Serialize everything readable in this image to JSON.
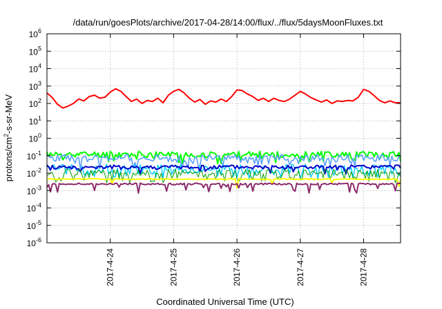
{
  "chart_data": {
    "type": "line",
    "title": "/data/run/goesPlots/archive/2017-04-28/14:00/flux/../flux/5daysMoonFluxes.txt",
    "xlabel": "Coordinated Universal Time (UTC)",
    "ylabel": {
      "base": "protons/cm",
      "sup": "2",
      "rest": "-s-sr-MeV"
    },
    "y_scale": "log",
    "ylim": [
      1e-06,
      1000000.0
    ],
    "xlim": [
      "2017-04-23 00:00",
      "2017-04-28 14:00"
    ],
    "x_ticks": [
      {
        "date": "2017-04-24",
        "label": "2017-4-24"
      },
      {
        "date": "2017-04-25",
        "label": "2017-4-25"
      },
      {
        "date": "2017-04-26",
        "label": "2017-4-26"
      },
      {
        "date": "2017-04-27",
        "label": "2017-4-27"
      },
      {
        "date": "2017-04-28",
        "label": "2017-4-28"
      }
    ],
    "y_ticks": [
      {
        "exp": -6,
        "base": "10",
        "sup": "-6"
      },
      {
        "exp": -5,
        "base": "10",
        "sup": "-5"
      },
      {
        "exp": -4,
        "base": "10",
        "sup": "-4"
      },
      {
        "exp": -3,
        "base": "10",
        "sup": "-3"
      },
      {
        "exp": -2,
        "base": "10",
        "sup": "-2"
      },
      {
        "exp": -1,
        "base": "10",
        "sup": "-1"
      },
      {
        "exp": 0,
        "base": "10",
        "sup": "0"
      },
      {
        "exp": 1,
        "base": "10",
        "sup": "1"
      },
      {
        "exp": 2,
        "base": "10",
        "sup": "2"
      },
      {
        "exp": 3,
        "base": "10",
        "sup": "3"
      },
      {
        "exp": 4,
        "base": "10",
        "sup": "4"
      },
      {
        "exp": 5,
        "base": "10",
        "sup": "5"
      },
      {
        "exp": 6,
        "base": "10",
        "sup": "6"
      }
    ],
    "grid": true,
    "series": [
      {
        "color": "#ff0000",
        "width": 2.0,
        "points": [
          [
            "2017-04-23 00:00",
            400
          ],
          [
            "2017-04-23 02:00",
            220
          ],
          [
            "2017-04-23 04:00",
            90
          ],
          [
            "2017-04-23 06:00",
            55
          ],
          [
            "2017-04-23 08:00",
            70
          ],
          [
            "2017-04-23 10:00",
            100
          ],
          [
            "2017-04-23 12:00",
            180
          ],
          [
            "2017-04-23 14:00",
            140
          ],
          [
            "2017-04-23 16:00",
            250
          ],
          [
            "2017-04-23 18:00",
            300
          ],
          [
            "2017-04-23 20:00",
            200
          ],
          [
            "2017-04-23 22:00",
            230
          ],
          [
            "2017-04-24 00:00",
            450
          ],
          [
            "2017-04-24 02:00",
            700
          ],
          [
            "2017-04-24 04:00",
            500
          ],
          [
            "2017-04-24 06:00",
            250
          ],
          [
            "2017-04-24 08:00",
            130
          ],
          [
            "2017-04-24 10:00",
            180
          ],
          [
            "2017-04-24 12:00",
            100
          ],
          [
            "2017-04-24 14:00",
            150
          ],
          [
            "2017-04-24 16:00",
            130
          ],
          [
            "2017-04-24 18:00",
            200
          ],
          [
            "2017-04-24 20:00",
            110
          ],
          [
            "2017-04-24 22:00",
            300
          ],
          [
            "2017-04-25 00:00",
            500
          ],
          [
            "2017-04-25 02:00",
            650
          ],
          [
            "2017-04-25 04:00",
            400
          ],
          [
            "2017-04-25 06:00",
            200
          ],
          [
            "2017-04-25 08:00",
            120
          ],
          [
            "2017-04-25 10:00",
            170
          ],
          [
            "2017-04-25 12:00",
            90
          ],
          [
            "2017-04-25 14:00",
            140
          ],
          [
            "2017-04-25 16:00",
            120
          ],
          [
            "2017-04-25 18:00",
            180
          ],
          [
            "2017-04-25 20:00",
            130
          ],
          [
            "2017-04-25 22:00",
            250
          ],
          [
            "2017-04-26 00:00",
            600
          ],
          [
            "2017-04-26 02:00",
            550
          ],
          [
            "2017-04-26 04:00",
            350
          ],
          [
            "2017-04-26 06:00",
            250
          ],
          [
            "2017-04-26 08:00",
            150
          ],
          [
            "2017-04-26 10:00",
            200
          ],
          [
            "2017-04-26 12:00",
            130
          ],
          [
            "2017-04-26 14:00",
            200
          ],
          [
            "2017-04-26 16:00",
            150
          ],
          [
            "2017-04-26 18:00",
            130
          ],
          [
            "2017-04-26 20:00",
            180
          ],
          [
            "2017-04-26 22:00",
            300
          ],
          [
            "2017-04-27 00:00",
            500
          ],
          [
            "2017-04-27 02:00",
            350
          ],
          [
            "2017-04-27 04:00",
            220
          ],
          [
            "2017-04-27 06:00",
            160
          ],
          [
            "2017-04-27 08:00",
            120
          ],
          [
            "2017-04-27 10:00",
            160
          ],
          [
            "2017-04-27 12:00",
            100
          ],
          [
            "2017-04-27 14:00",
            140
          ],
          [
            "2017-04-27 16:00",
            130
          ],
          [
            "2017-04-27 18:00",
            150
          ],
          [
            "2017-04-27 20:00",
            140
          ],
          [
            "2017-04-27 22:00",
            230
          ],
          [
            "2017-04-28 00:00",
            650
          ],
          [
            "2017-04-28 02:00",
            500
          ],
          [
            "2017-04-28 04:00",
            280
          ],
          [
            "2017-04-28 06:00",
            150
          ],
          [
            "2017-04-28 08:00",
            110
          ],
          [
            "2017-04-28 10:00",
            140
          ],
          [
            "2017-04-28 12:00",
            110
          ],
          [
            "2017-04-28 14:00",
            110
          ]
        ]
      },
      {
        "color": "#00ff00",
        "width": 2.0,
        "base": 0.12,
        "amp": 0.35,
        "seed": 11,
        "dips": 0.15
      },
      {
        "color": "#5aa0ff",
        "width": 1.6,
        "base": 0.075,
        "amp": 0.4,
        "seed": 23,
        "dips": 0.2
      },
      {
        "color": "#00ccff",
        "width": 1.4,
        "base": 0.02,
        "amp": 0.45,
        "seed": 37,
        "dips": 0.3
      },
      {
        "color": "#0000cc",
        "width": 2.0,
        "base": 0.022,
        "amp": 0.25,
        "seed": 41,
        "dips": 0.1
      },
      {
        "color": "#00a000",
        "width": 1.0,
        "base": 0.011,
        "amp": 0.35,
        "seed": 53,
        "dips": 0.35
      },
      {
        "color": "#ffff00",
        "width": 2.0,
        "base": 0.0045,
        "amp": 0.06,
        "seed": 61,
        "dips": 0.05
      },
      {
        "color": "#8b2a6b",
        "width": 2.0,
        "base": 0.0024,
        "amp": 0.1,
        "seed": 71,
        "dips": 0.15
      }
    ]
  }
}
